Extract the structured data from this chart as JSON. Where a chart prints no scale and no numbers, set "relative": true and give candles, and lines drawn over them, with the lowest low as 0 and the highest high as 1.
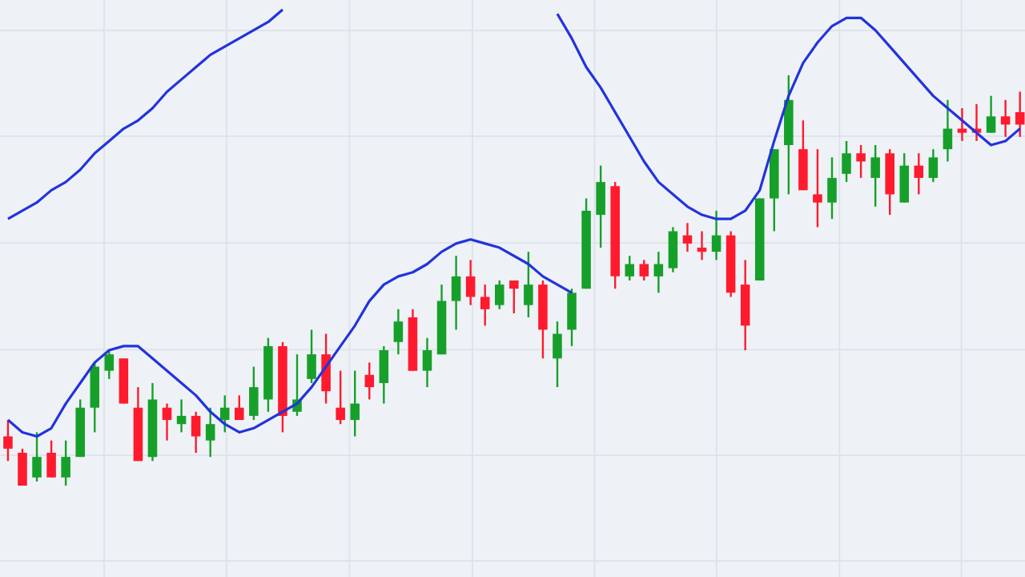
{
  "chart_data": {
    "type": "candlestick",
    "relative": true,
    "grid": true,
    "categories": [
      null,
      null,
      null,
      null,
      null,
      null,
      null,
      null,
      null,
      null,
      null,
      null,
      null,
      null,
      null,
      null,
      null,
      null,
      null,
      null,
      null,
      null,
      null,
      null,
      null,
      null,
      null,
      null,
      null,
      null,
      null,
      null,
      null,
      null,
      null,
      null,
      null,
      null,
      null,
      null,
      null,
      null,
      null,
      null,
      null,
      null,
      null,
      null,
      null,
      null,
      null,
      null,
      null,
      null,
      null,
      null,
      null,
      null,
      null,
      null,
      null,
      null,
      null,
      null,
      null,
      null,
      null,
      null,
      null,
      null,
      null
    ],
    "ohlc": [
      [
        0.12,
        0.16,
        0.06,
        0.09
      ],
      [
        0.08,
        0.09,
        0.0,
        0.0
      ],
      [
        0.02,
        0.13,
        0.01,
        0.07
      ],
      [
        0.08,
        0.11,
        0.02,
        0.02
      ],
      [
        0.02,
        0.11,
        0.0,
        0.07
      ],
      [
        0.07,
        0.21,
        0.07,
        0.19
      ],
      [
        0.19,
        0.3,
        0.13,
        0.29
      ],
      [
        0.28,
        0.33,
        0.26,
        0.32
      ],
      [
        0.31,
        0.31,
        0.2,
        0.2
      ],
      [
        0.19,
        0.24,
        0.06,
        0.06
      ],
      [
        0.07,
        0.25,
        0.06,
        0.21
      ],
      [
        0.19,
        0.2,
        0.11,
        0.16
      ],
      [
        0.15,
        0.21,
        0.13,
        0.17
      ],
      [
        0.17,
        0.18,
        0.08,
        0.12
      ],
      [
        0.11,
        0.19,
        0.07,
        0.15
      ],
      [
        0.16,
        0.22,
        0.13,
        0.19
      ],
      [
        0.19,
        0.22,
        0.16,
        0.16
      ],
      [
        0.17,
        0.29,
        0.16,
        0.24
      ],
      [
        0.21,
        0.36,
        0.18,
        0.34
      ],
      [
        0.34,
        0.35,
        0.13,
        0.17
      ],
      [
        0.18,
        0.32,
        0.17,
        0.21
      ],
      [
        0.26,
        0.38,
        0.25,
        0.32
      ],
      [
        0.32,
        0.37,
        0.2,
        0.23
      ],
      [
        0.19,
        0.28,
        0.15,
        0.16
      ],
      [
        0.16,
        0.28,
        0.12,
        0.2
      ],
      [
        0.27,
        0.3,
        0.21,
        0.24
      ],
      [
        0.25,
        0.34,
        0.2,
        0.33
      ],
      [
        0.35,
        0.43,
        0.32,
        0.4
      ],
      [
        0.41,
        0.43,
        0.28,
        0.28
      ],
      [
        0.28,
        0.36,
        0.24,
        0.33
      ],
      [
        0.32,
        0.49,
        0.32,
        0.45
      ],
      [
        0.45,
        0.56,
        0.38,
        0.51
      ],
      [
        0.51,
        0.55,
        0.44,
        0.46
      ],
      [
        0.46,
        0.49,
        0.39,
        0.43
      ],
      [
        0.44,
        0.5,
        0.43,
        0.49
      ],
      [
        0.5,
        0.5,
        0.42,
        0.48
      ],
      [
        0.44,
        0.57,
        0.41,
        0.49
      ],
      [
        0.49,
        0.5,
        0.31,
        0.38
      ],
      [
        0.31,
        0.4,
        0.24,
        0.37
      ],
      [
        0.38,
        0.48,
        0.34,
        0.47
      ],
      [
        0.48,
        0.7,
        0.48,
        0.67
      ],
      [
        0.66,
        0.78,
        0.58,
        0.74
      ],
      [
        0.73,
        0.74,
        0.48,
        0.51
      ],
      [
        0.51,
        0.56,
        0.5,
        0.54
      ],
      [
        0.54,
        0.55,
        0.5,
        0.51
      ],
      [
        0.51,
        0.57,
        0.47,
        0.54
      ],
      [
        0.53,
        0.63,
        0.52,
        0.62
      ],
      [
        0.61,
        0.64,
        0.57,
        0.59
      ],
      [
        0.58,
        0.62,
        0.55,
        0.57
      ],
      [
        0.57,
        0.67,
        0.55,
        0.61
      ],
      [
        0.61,
        0.62,
        0.46,
        0.47
      ],
      [
        0.49,
        0.55,
        0.33,
        0.39
      ],
      [
        0.5,
        0.7,
        0.5,
        0.7
      ],
      [
        0.7,
        0.82,
        0.62,
        0.82
      ],
      [
        0.83,
        1,
        0.71,
        0.94
      ],
      [
        0.82,
        0.89,
        0.72,
        0.72
      ],
      [
        0.71,
        0.82,
        0.63,
        0.69
      ],
      [
        0.69,
        0.8,
        0.65,
        0.75
      ],
      [
        0.76,
        0.84,
        0.74,
        0.81
      ],
      [
        0.81,
        0.83,
        0.75,
        0.79
      ],
      [
        0.75,
        0.83,
        0.68,
        0.8
      ],
      [
        0.81,
        0.82,
        0.66,
        0.71
      ],
      [
        0.69,
        0.81,
        0.69,
        0.78
      ],
      [
        0.78,
        0.81,
        0.71,
        0.75
      ],
      [
        0.75,
        0.82,
        0.74,
        0.8
      ],
      [
        0.82,
        0.94,
        0.79,
        0.87
      ],
      [
        0.87,
        0.92,
        0.84,
        0.86
      ],
      [
        0.87,
        0.93,
        0.84,
        0.86
      ],
      [
        0.86,
        0.95,
        0.86,
        0.9
      ],
      [
        0.9,
        0.94,
        0.85,
        0.88
      ],
      [
        0.91,
        0.96,
        0.85,
        0.88
      ]
    ],
    "series": [
      {
        "type": "line",
        "color": "#2233dd",
        "values": [
          0.65,
          0.67,
          0.69,
          0.72,
          0.74,
          0.77,
          0.81,
          0.84,
          0.87,
          0.89,
          0.92,
          0.96,
          0.99,
          1.02,
          1.05,
          1.07,
          1.09,
          1.11,
          1.13,
          1.16,
          null,
          null,
          null,
          null,
          null,
          null,
          null,
          null,
          null,
          null,
          null,
          null,
          null,
          null,
          null,
          null,
          null,
          null,
          1.15,
          1.09,
          1.02,
          0.97,
          0.91,
          0.85,
          0.79,
          0.74,
          0.71,
          0.68,
          0.66,
          0.65,
          0.65,
          0.67,
          0.72,
          0.84,
          0.95,
          1.03,
          1.08,
          1.12,
          1.14,
          1.14,
          1.11,
          1.07,
          1.03,
          0.99,
          0.95,
          0.92,
          0.89,
          0.86,
          0.83,
          0.84,
          0.87
        ]
      },
      {
        "type": "line",
        "color": "#2233dd",
        "values": [
          0.16,
          0.13,
          0.12,
          0.14,
          0.2,
          0.25,
          0.3,
          0.33,
          0.34,
          0.34,
          0.31,
          0.28,
          0.25,
          0.22,
          0.18,
          0.15,
          0.13,
          0.14,
          0.16,
          0.18,
          0.2,
          0.24,
          0.29,
          0.34,
          0.39,
          0.45,
          0.49,
          0.51,
          0.52,
          0.54,
          0.57,
          0.59,
          0.6,
          0.59,
          0.58,
          0.56,
          0.54,
          0.51,
          0.49,
          0.47,
          null,
          null,
          null,
          null,
          null,
          null,
          null,
          null,
          null,
          null,
          null,
          null,
          null,
          null,
          null,
          null,
          null,
          null,
          null,
          null,
          null,
          null,
          null,
          null,
          null,
          null,
          null,
          null,
          null,
          null,
          null
        ]
      }
    ]
  }
}
